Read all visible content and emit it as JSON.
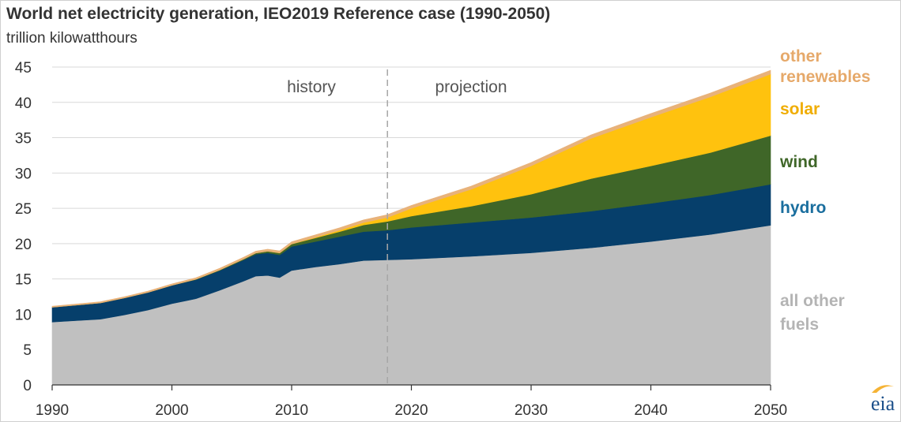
{
  "chart_data": {
    "type": "area",
    "stacked": true,
    "title": "World net electricity generation, IEO2019 Reference case  (1990-2050)",
    "ylabel": "trillion kilowatthours",
    "xlim": [
      1990,
      2050
    ],
    "ylim": [
      0,
      45
    ],
    "x_ticks": [
      1990,
      2000,
      2010,
      2020,
      2030,
      2040,
      2050
    ],
    "y_ticks": [
      0,
      5,
      10,
      15,
      20,
      25,
      30,
      35,
      40,
      45
    ],
    "grid": true,
    "divider": {
      "x": 2018,
      "left_label": "history",
      "right_label": "projection"
    },
    "x": [
      1990,
      1992,
      1994,
      1996,
      1998,
      2000,
      2002,
      2004,
      2006,
      2007,
      2008,
      2009,
      2010,
      2012,
      2014,
      2016,
      2018,
      2020,
      2025,
      2030,
      2035,
      2040,
      2045,
      2050
    ],
    "series": [
      {
        "name": "all other fuels",
        "color": "#c0c0c0",
        "label_color": "#b4b4b4",
        "values": [
          8.9,
          9.1,
          9.3,
          9.9,
          10.6,
          11.5,
          12.2,
          13.4,
          14.7,
          15.4,
          15.5,
          15.2,
          16.2,
          16.7,
          17.1,
          17.6,
          17.7,
          17.8,
          18.2,
          18.7,
          19.4,
          20.3,
          21.3,
          22.6
        ]
      },
      {
        "name": "hydro",
        "color": "#063f6b",
        "label_color": "#1a6e9e",
        "values": [
          2.1,
          2.2,
          2.3,
          2.4,
          2.5,
          2.6,
          2.7,
          2.8,
          3.0,
          3.1,
          3.2,
          3.2,
          3.4,
          3.6,
          3.9,
          4.1,
          4.2,
          4.5,
          4.8,
          5.0,
          5.2,
          5.4,
          5.6,
          5.8
        ]
      },
      {
        "name": "wind",
        "color": "#3f6628",
        "label_color": "#3f6628",
        "values": [
          0,
          0,
          0,
          0,
          0,
          0,
          0.05,
          0.08,
          0.13,
          0.17,
          0.22,
          0.27,
          0.34,
          0.52,
          0.7,
          0.95,
          1.25,
          1.6,
          2.3,
          3.3,
          4.6,
          5.3,
          6.0,
          6.9
        ]
      },
      {
        "name": "solar",
        "color": "#ffc20e",
        "label_color": "#f0ad00",
        "values": [
          0,
          0,
          0,
          0,
          0,
          0,
          0,
          0,
          0,
          0,
          0.01,
          0.02,
          0.03,
          0.1,
          0.2,
          0.33,
          0.55,
          1.1,
          2.4,
          4.0,
          5.7,
          6.9,
          7.9,
          8.7
        ]
      },
      {
        "name": "other renewables",
        "color": "#e8b27a",
        "label_color": "#e6a96a",
        "values": [
          0.15,
          0.16,
          0.17,
          0.18,
          0.19,
          0.2,
          0.22,
          0.24,
          0.26,
          0.27,
          0.28,
          0.29,
          0.3,
          0.33,
          0.35,
          0.38,
          0.4,
          0.42,
          0.45,
          0.48,
          0.5,
          0.52,
          0.54,
          0.55
        ]
      }
    ],
    "series_labels": [
      {
        "series": "other renewables",
        "lines": [
          "other",
          "renewables"
        ]
      },
      {
        "series": "solar",
        "lines": [
          "solar"
        ]
      },
      {
        "series": "wind",
        "lines": [
          "wind"
        ]
      },
      {
        "series": "hydro",
        "lines": [
          "hydro"
        ]
      },
      {
        "series": "all other fuels",
        "lines": [
          "all other",
          "fuels"
        ]
      }
    ]
  },
  "logo": {
    "text": "eia",
    "swoosh_color": "#f5b335"
  }
}
